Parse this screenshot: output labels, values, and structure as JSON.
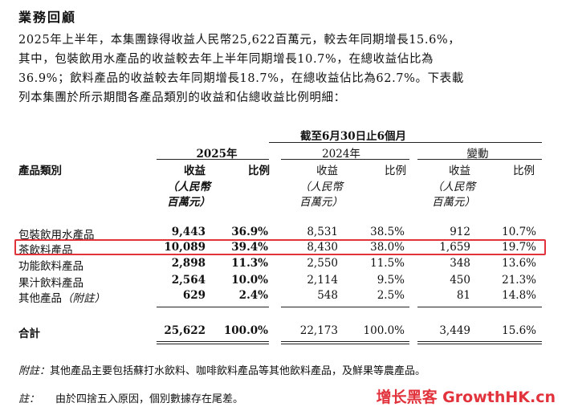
{
  "heading": "業務回顧",
  "paragraph": [
    "2025年上半年，本集團錄得收益人民幣25,622百萬元，較去年同期增長15.6%，",
    "其中，包裝飲用水產品的收益較去年上半年同期增長10.7%，在總收益佔比為",
    "36.9%；飲料產品的收益較去年同期增長18.7%，在總收益佔比為62.7%。下表載",
    "列本集團於所示期間各產品類別的收益和佔總收益比例明細："
  ],
  "table": {
    "period_header": "截至6月30日止6個月",
    "year_2025": "2025年",
    "year_2024": "2024年",
    "change": "變動",
    "category_header": "產品類別",
    "revenue_label": "收益",
    "ratio_label": "比例",
    "unit_line1": "（人民幣",
    "unit_line2": "百萬元）",
    "rows": [
      {
        "category": "包裝飲用水產品",
        "rev2025": "9,443",
        "pct2025": "36.9%",
        "rev2024": "8,531",
        "pct2024": "38.5%",
        "chg": "912",
        "chgpct": "10.7%"
      },
      {
        "category": "茶飲料產品",
        "rev2025": "10,089",
        "pct2025": "39.4%",
        "rev2024": "8,430",
        "pct2024": "38.0%",
        "chg": "1,659",
        "chgpct": "19.7%"
      },
      {
        "category": "功能飲料產品",
        "rev2025": "2,898",
        "pct2025": "11.3%",
        "rev2024": "2,550",
        "pct2024": "11.5%",
        "chg": "348",
        "chgpct": "13.6%"
      },
      {
        "category": "果汁飲料產品",
        "rev2025": "2,564",
        "pct2025": "10.0%",
        "rev2024": "2,114",
        "pct2024": "9.5%",
        "chg": "450",
        "chgpct": "21.3%"
      },
      {
        "category": "其他產品",
        "category_note": "（附註）",
        "rev2025": "629",
        "pct2025": "2.4%",
        "rev2024": "548",
        "pct2024": "2.5%",
        "chg": "81",
        "chgpct": "14.8%"
      }
    ],
    "total": {
      "category": "合計",
      "rev2025": "25,622",
      "pct2025": "100.0%",
      "rev2024": "22,173",
      "pct2024": "100.0%",
      "chg": "3,449",
      "chgpct": "15.6%"
    }
  },
  "notes": {
    "note1_label": "附註：",
    "note1_text": "其他產品主要包括蘇打水飲料、咖啡飲料產品等其他飲料產品，及鮮果等農產品。",
    "note2_label": "註：",
    "note2_text": "由於四捨五入原因，個別數據存在尾差。"
  },
  "watermark": "增长黑客 GrowthHK.cn",
  "colors": {
    "highlight": "#e2333d",
    "text": "#111111"
  }
}
